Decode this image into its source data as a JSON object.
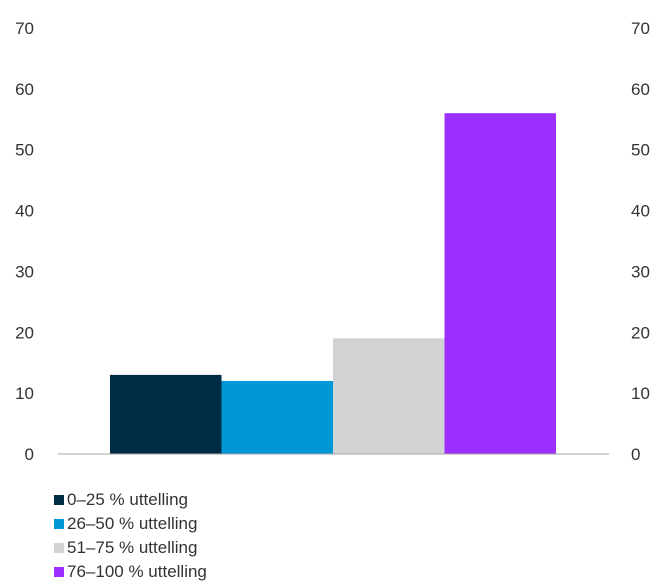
{
  "chart_data": {
    "type": "bar",
    "title": "",
    "xlabel": "",
    "ylabel": "",
    "ylim": [
      0,
      70
    ],
    "yticks": [
      0,
      10,
      20,
      30,
      40,
      50,
      60,
      70
    ],
    "y_axis_sides": [
      "left",
      "right"
    ],
    "grid": false,
    "legend_position": "bottom-left",
    "series": [
      {
        "name": "0–25 % uttelling",
        "value": 13,
        "color": "#002B45"
      },
      {
        "name": "26–50 % uttelling",
        "value": 12,
        "color": "#0097D7"
      },
      {
        "name": "51–75 % uttelling",
        "value": 19,
        "color": "#D1D2D4"
      },
      {
        "name": "76–100 % uttelling",
        "value": 56,
        "color": "#9B30FF"
      }
    ]
  }
}
